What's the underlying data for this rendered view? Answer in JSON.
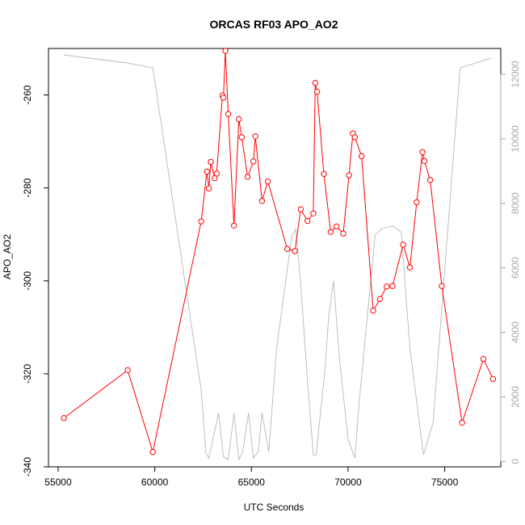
{
  "chart_data": {
    "type": "line",
    "title": "ORCAS RF03 APO_AO2",
    "xlabel": "UTC Seconds",
    "ylabel": "APO_AO2",
    "xlim": [
      54500,
      77900
    ],
    "ylim": [
      -340,
      -250
    ],
    "y2lim": [
      -170,
      12800
    ],
    "x_ticks": [
      55000,
      60000,
      65000,
      70000,
      75000
    ],
    "y_ticks": [
      -340,
      -320,
      -300,
      -280,
      -260
    ],
    "y2_ticks": [
      0,
      2000,
      4000,
      6000,
      8000,
      10000,
      12000
    ],
    "grid": false,
    "legend": "none",
    "colors": {
      "main": "#ff0000",
      "secondary": "#bebebe",
      "right_axis": "#a9a9a9"
    },
    "series": [
      {
        "role": "primary",
        "x": [
          55300,
          58600,
          59900,
          62400,
          62700,
          62800,
          62900,
          63100,
          63200,
          63500,
          63550,
          63650,
          63800,
          64100,
          64350,
          64500,
          64800,
          65100,
          65200,
          65550,
          65850,
          66850,
          67250,
          67550,
          67900,
          68200,
          68300,
          68400,
          68750,
          69100,
          69400,
          69750,
          70050,
          70250,
          70350,
          70700,
          71300,
          71650,
          72000,
          72300,
          72850,
          73200,
          73550,
          73850,
          73950,
          74250,
          74850,
          75900,
          77000,
          77500
        ],
        "y": [
          -329.5,
          -319.2,
          -336.8,
          -287.2,
          -276.5,
          -280.1,
          -274.4,
          -277.9,
          -276.9,
          -260.1,
          -260.6,
          -250.5,
          -264.1,
          -288.1,
          -265.2,
          -269.1,
          -277.6,
          -274.3,
          -268.9,
          -282.8,
          -278.6,
          -293.1,
          -293.6,
          -284.6,
          -287.1,
          -285.5,
          -257.4,
          -259.3,
          -277.0,
          -289.5,
          -288.3,
          -289.8,
          -277.3,
          -268.3,
          -269.1,
          -273.2,
          -306.4,
          -303.9,
          -301.2,
          -301.1,
          -292.2,
          -297.1,
          -283.1,
          -272.3,
          -274.2,
          -278.3,
          -301.1,
          -330.5,
          -316.8,
          -321.1
        ]
      },
      {
        "role": "secondary",
        "axis": "right",
        "x": [
          55300,
          58600,
          59900,
          62400,
          62650,
          62800,
          63300,
          63550,
          63800,
          64100,
          64350,
          64550,
          64850,
          65100,
          65350,
          65550,
          65900,
          66300,
          67100,
          67300,
          67550,
          67900,
          68200,
          68350,
          68450,
          68800,
          69000,
          69250,
          69550,
          70000,
          70350,
          70600,
          71400,
          71700,
          72300,
          72750,
          73200,
          73900,
          74400,
          75800,
          77400
        ],
        "y": [
          12600,
          12350,
          12200,
          2200,
          250,
          100,
          1500,
          150,
          50,
          1500,
          50,
          300,
          1500,
          100,
          300,
          1500,
          300,
          3500,
          7000,
          7200,
          5500,
          2500,
          200,
          200,
          800,
          2800,
          4500,
          5600,
          3200,
          700,
          100,
          2000,
          7000,
          7200,
          7300,
          7100,
          3500,
          200,
          1200,
          12200,
          12500
        ]
      }
    ]
  }
}
